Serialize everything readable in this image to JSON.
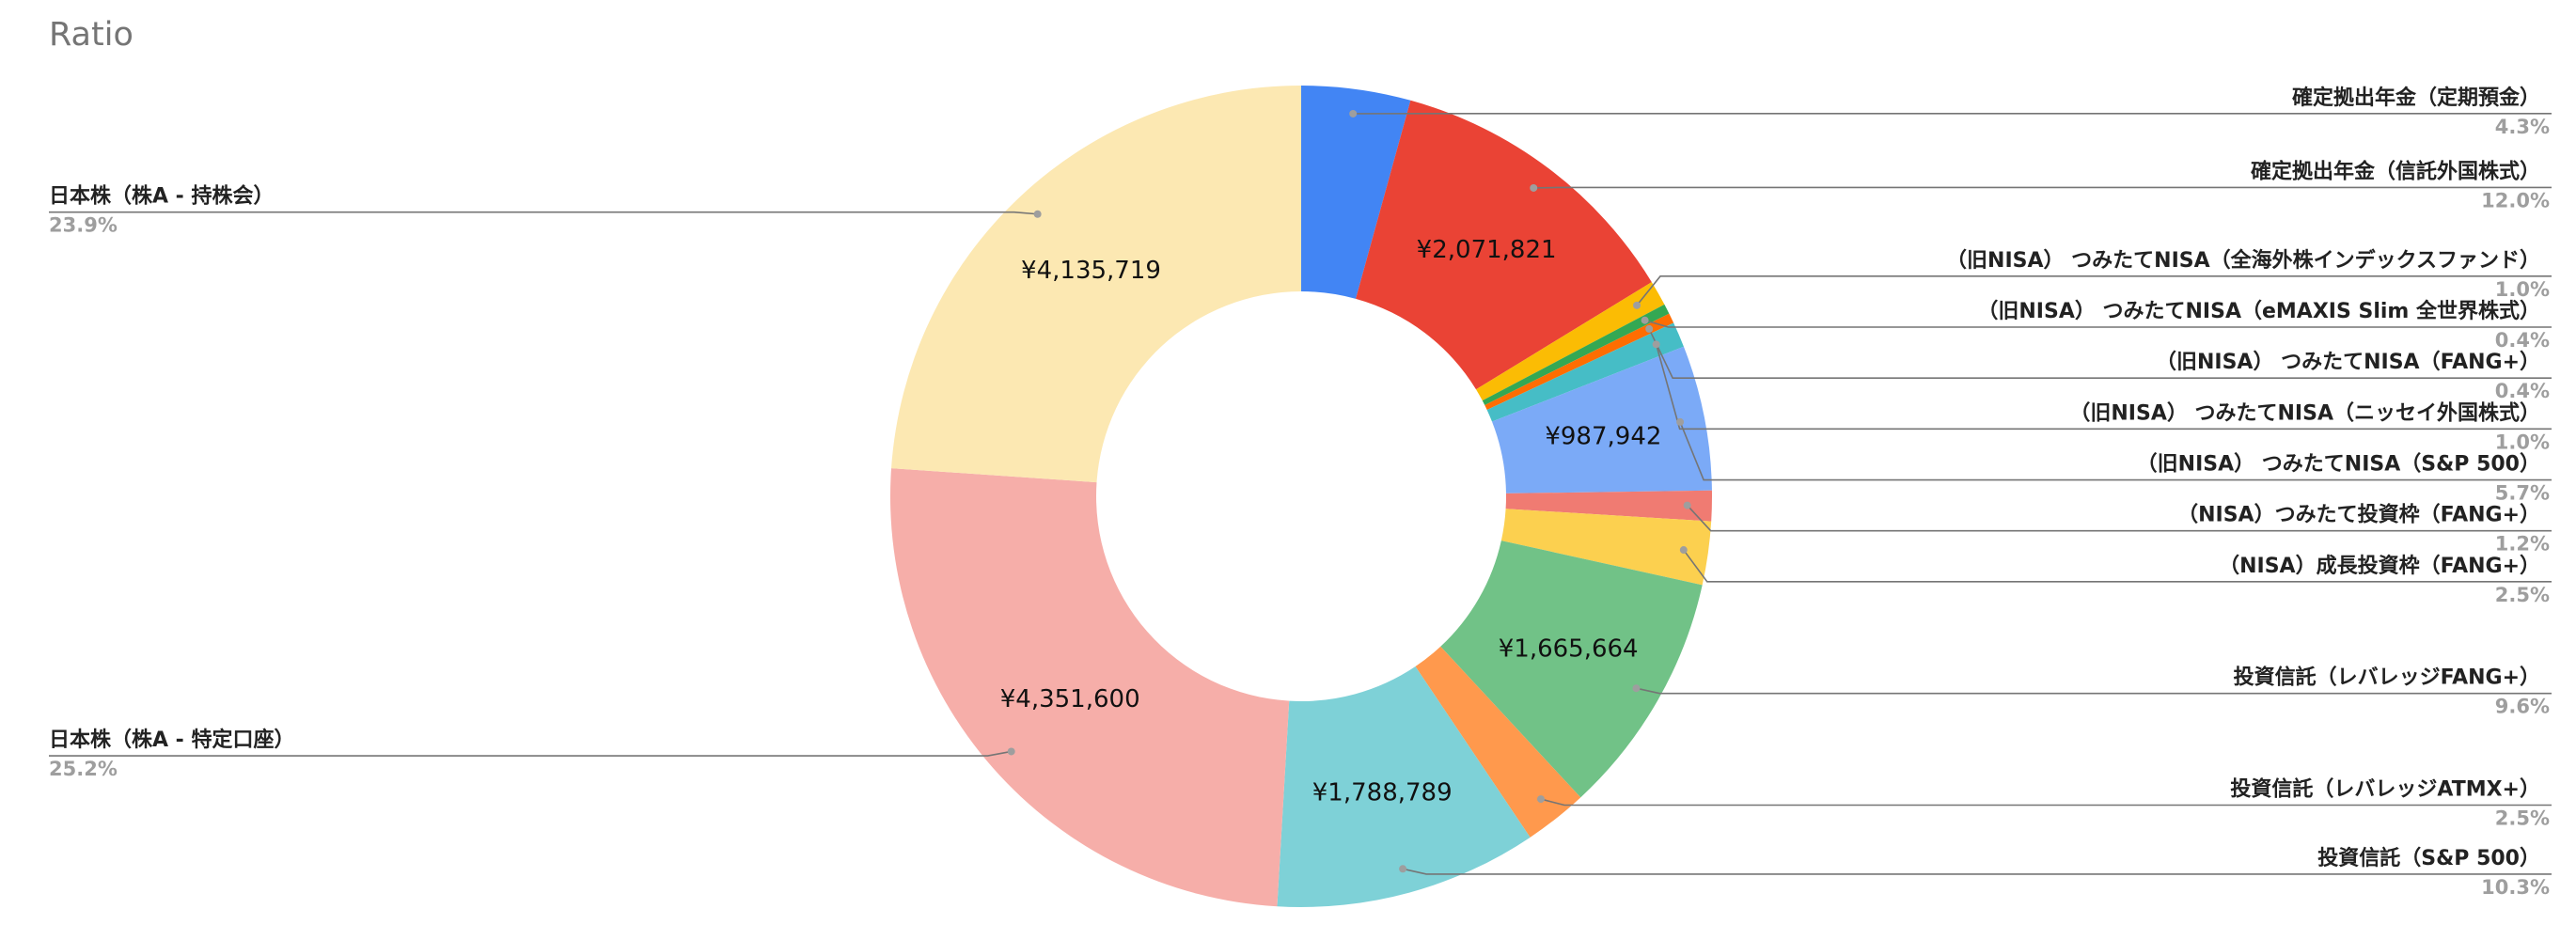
{
  "chart_data": {
    "type": "pie",
    "title": "Ratio",
    "donut": true,
    "categories": [
      "確定拠出年金（定期預金）",
      "確定拠出年金（信託外国株式）",
      "（旧NISA） つみたてNISA（全海外株インデックスファンド）",
      "（旧NISA） つみたてNISA（eMAXIS Slim 全世界株式）",
      "（旧NISA） つみたてNISA（FANG+）",
      "（旧NISA） つみたてNISA（ニッセイ外国株式）",
      "（旧NISA） つみたてNISA（S&P 500）",
      "（NISA）つみたて投資枠（FANG+）",
      "（NISA）成長投資枠（FANG+）",
      "投資信託（レバレッジFANG+）",
      "投資信託（レバレッジATMX+）",
      "投資信託（S&P 500）",
      "日本株（株A - 特定口座）",
      "日本株（株A - 持株会）"
    ],
    "values": [
      742000,
      2071821,
      172600,
      69000,
      69000,
      172600,
      987942,
      207000,
      431600,
      1665664,
      431600,
      1788789,
      4351600,
      4135719
    ],
    "value_labels": [
      null,
      "¥2,071,821",
      null,
      null,
      null,
      null,
      "¥987,942",
      null,
      null,
      "¥1,665,664",
      null,
      "¥1,788,789",
      "¥4,351,600",
      "¥4,135,719"
    ],
    "percent_labels": [
      "4.3%",
      "12.0%",
      "1.0%",
      "0.4%",
      "0.4%",
      "1.0%",
      "5.7%",
      "1.2%",
      "2.5%",
      "9.6%",
      "2.5%",
      "10.3%",
      "25.2%",
      "23.9%"
    ],
    "colors": [
      "#4285f4",
      "#ea4335",
      "#fbbc04",
      "#34a853",
      "#ff6d01",
      "#46bdc6",
      "#7baaf7",
      "#f07b72",
      "#fcd04f",
      "#71c287",
      "#ff994d",
      "#7ed1d7",
      "#f6aea9",
      "#fce8b2"
    ]
  }
}
